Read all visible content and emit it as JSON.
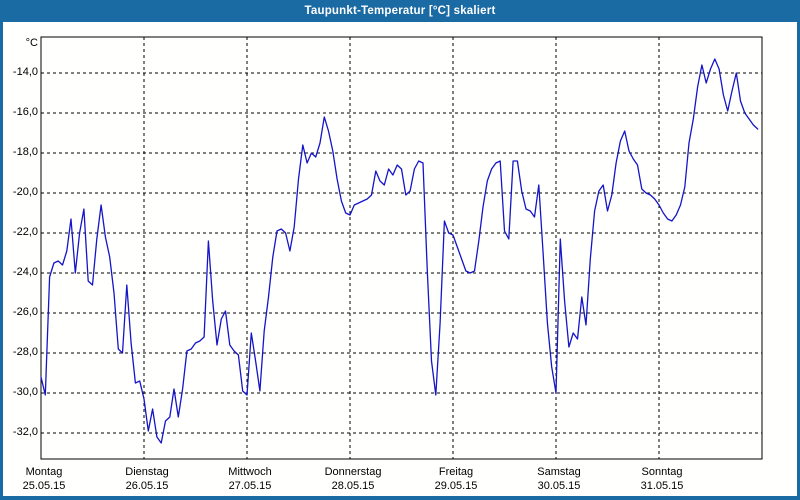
{
  "window": {
    "title": "Taupunkt-Temperatur [°C] skaliert"
  },
  "colors": {
    "accent": "#1a6aa3",
    "line": "#1515c8",
    "grid": "#000000",
    "text": "#000000",
    "plot_background": "#fffffe"
  },
  "chart_data": {
    "type": "line",
    "title": "Taupunkt-Temperatur [°C] skaliert",
    "ylabel": "°C",
    "grid": "dashed",
    "legend": "none",
    "ylim": [
      -33.3,
      -12.2
    ],
    "y_tick_values": [
      -14,
      -16,
      -18,
      -20,
      -22,
      -24,
      -26,
      -28,
      -30,
      -32
    ],
    "y_tick_labels": [
      "-14,0",
      "-16,0",
      "-18,0",
      "-20,0",
      "-22,0",
      "-24,0",
      "-26,0",
      "-28,0",
      "-30,0",
      "-32,0"
    ],
    "x_days": [
      {
        "weekday": "Montag",
        "date": "25.05.15"
      },
      {
        "weekday": "Dienstag",
        "date": "26.05.15"
      },
      {
        "weekday": "Mittwoch",
        "date": "27.05.15"
      },
      {
        "weekday": "Donnerstag",
        "date": "28.05.15"
      },
      {
        "weekday": "Freitag",
        "date": "29.05.15"
      },
      {
        "weekday": "Samstag",
        "date": "30.05.15"
      },
      {
        "weekday": "Sonntag",
        "date": "31.05.15"
      }
    ],
    "sampling": "hourly",
    "points_per_day": 24,
    "series": [
      {
        "name": "Taupunkt-Temperatur",
        "unit": "°C",
        "values": [
          -29.2,
          -30.1,
          -24.2,
          -23.5,
          -23.4,
          -23.6,
          -22.9,
          -21.3,
          -24.0,
          -22.0,
          -20.8,
          -24.4,
          -24.6,
          -22.3,
          -20.6,
          -22.2,
          -23.2,
          -25.0,
          -27.8,
          -28.0,
          -24.6,
          -27.5,
          -29.5,
          -29.4,
          -30.3,
          -31.9,
          -30.8,
          -32.2,
          -32.5,
          -31.4,
          -31.2,
          -29.8,
          -31.2,
          -29.8,
          -27.9,
          -27.8,
          -27.5,
          -27.4,
          -27.2,
          -22.4,
          -25.4,
          -27.6,
          -26.3,
          -25.9,
          -27.6,
          -27.9,
          -28.1,
          -29.9,
          -30.1,
          -27.0,
          -28.4,
          -29.9,
          -26.9,
          -25.2,
          -23.2,
          -21.9,
          -21.8,
          -22.0,
          -22.9,
          -21.7,
          -19.3,
          -17.6,
          -18.5,
          -18.0,
          -18.2,
          -17.5,
          -16.2,
          -16.9,
          -17.9,
          -19.3,
          -20.4,
          -21.0,
          -21.1,
          -20.6,
          -20.5,
          -20.4,
          -20.3,
          -20.1,
          -18.9,
          -19.4,
          -19.6,
          -18.8,
          -19.1,
          -18.6,
          -18.8,
          -20.1,
          -19.9,
          -18.8,
          -18.4,
          -18.5,
          -23.9,
          -28.4,
          -30.1,
          -26.5,
          -21.4,
          -22.0,
          -22.1,
          -22.7,
          -23.3,
          -23.9,
          -24.0,
          -23.9,
          -22.4,
          -20.7,
          -19.4,
          -18.8,
          -18.5,
          -18.4,
          -21.9,
          -22.3,
          -18.4,
          -18.4,
          -19.9,
          -20.8,
          -20.9,
          -21.2,
          -19.6,
          -23.0,
          -26.5,
          -28.7,
          -30.0,
          -22.3,
          -25.4,
          -27.7,
          -27.0,
          -27.3,
          -25.2,
          -26.6,
          -23.3,
          -20.9,
          -19.9,
          -19.6,
          -20.9,
          -20.1,
          -18.5,
          -17.4,
          -16.9,
          -17.9,
          -18.3,
          -18.6,
          -19.8,
          -20.0,
          -20.1,
          -20.3,
          -20.6,
          -21.0,
          -21.3,
          -21.4,
          -21.1,
          -20.6,
          -19.7,
          -17.5,
          -16.3,
          -14.7,
          -13.6,
          -14.5,
          -13.8,
          -13.3,
          -13.8,
          -15.1,
          -15.9,
          -14.9,
          -14.0,
          -15.4,
          -16.0,
          -16.3,
          -16.6,
          -16.8
        ]
      }
    ]
  }
}
